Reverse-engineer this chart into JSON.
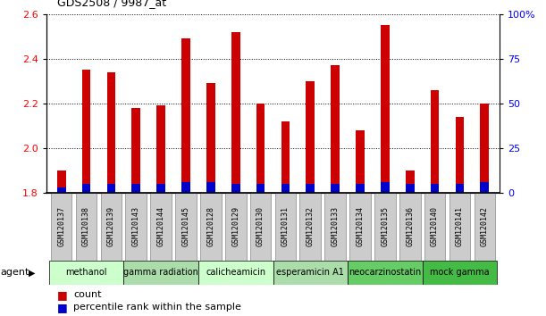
{
  "title": "GDS2508 / 9987_at",
  "samples": [
    "GSM120137",
    "GSM120138",
    "GSM120139",
    "GSM120143",
    "GSM120144",
    "GSM120145",
    "GSM120128",
    "GSM120129",
    "GSM120130",
    "GSM120131",
    "GSM120132",
    "GSM120133",
    "GSM120134",
    "GSM120135",
    "GSM120136",
    "GSM120140",
    "GSM120141",
    "GSM120142"
  ],
  "count_values": [
    1.9,
    2.35,
    2.34,
    2.18,
    2.19,
    2.49,
    2.29,
    2.52,
    2.2,
    2.12,
    2.3,
    2.37,
    2.08,
    2.55,
    1.9,
    2.26,
    2.14,
    2.2
  ],
  "percentile_values": [
    3,
    5,
    5,
    5,
    5,
    6,
    6,
    5,
    5,
    5,
    5,
    5,
    5,
    6,
    5,
    5,
    5,
    6
  ],
  "ylim_left": [
    1.8,
    2.6
  ],
  "ylim_right": [
    0,
    100
  ],
  "yticks_left": [
    1.8,
    2.0,
    2.2,
    2.4,
    2.6
  ],
  "yticks_right": [
    0,
    25,
    50,
    75,
    100
  ],
  "ytick_labels_right": [
    "0",
    "25",
    "50",
    "75",
    "100%"
  ],
  "bar_color_count": "#cc0000",
  "bar_color_pct": "#0000cc",
  "agent_groups": [
    {
      "label": "methanol",
      "start": 0,
      "end": 3,
      "color": "#ccffcc"
    },
    {
      "label": "gamma radiation",
      "start": 3,
      "end": 6,
      "color": "#aaddaa"
    },
    {
      "label": "calicheamicin",
      "start": 6,
      "end": 9,
      "color": "#ccffcc"
    },
    {
      "label": "esperamicin A1",
      "start": 9,
      "end": 12,
      "color": "#aaddaa"
    },
    {
      "label": "neocarzinostatin",
      "start": 12,
      "end": 15,
      "color": "#66cc66"
    },
    {
      "label": "mock gamma",
      "start": 15,
      "end": 18,
      "color": "#44bb44"
    }
  ],
  "agent_label": "agent",
  "legend_count_label": "count",
  "legend_pct_label": "percentile rank within the sample",
  "bar_width": 0.35,
  "base_value": 1.8,
  "plot_bg": "#ffffff",
  "tick_label_bg": "#cccccc",
  "tick_label_border": "#888888"
}
